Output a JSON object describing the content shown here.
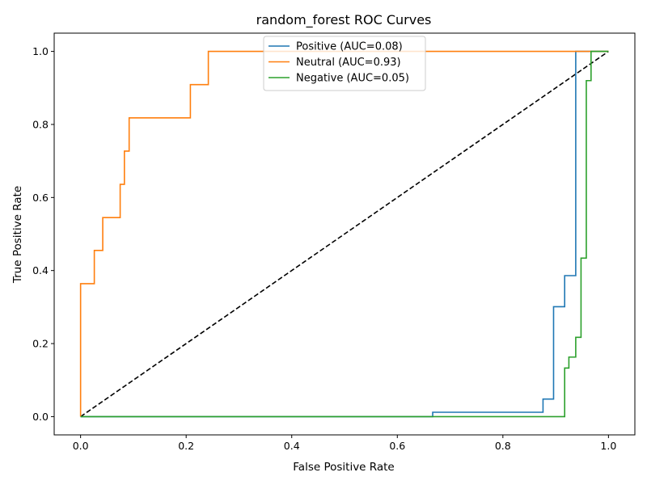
{
  "chart_data": {
    "type": "line",
    "title": "random_forest ROC Curves",
    "xlabel": "False Positive Rate",
    "ylabel": "True Positive Rate",
    "xlim": [
      -0.05,
      1.05
    ],
    "ylim": [
      -0.05,
      1.05
    ],
    "xticks": [
      0.0,
      0.2,
      0.4,
      0.6,
      0.8,
      1.0
    ],
    "yticks": [
      0.0,
      0.2,
      0.4,
      0.6,
      0.8,
      1.0
    ],
    "xtick_labels": [
      "0.0",
      "0.2",
      "0.4",
      "0.6",
      "0.8",
      "1.0"
    ],
    "ytick_labels": [
      "0.0",
      "0.2",
      "0.4",
      "0.6",
      "0.8",
      "1.0"
    ],
    "grid": false,
    "legend_position": "top-center",
    "series": [
      {
        "name": "Positive (AUC=0.08)",
        "color": "#1f77b4",
        "x": [
          0.0,
          0.667,
          0.667,
          0.876,
          0.876,
          0.896,
          0.896,
          0.917,
          0.917,
          0.938,
          0.938,
          1.0
        ],
        "y": [
          0.0,
          0.0,
          0.012,
          0.012,
          0.048,
          0.048,
          0.301,
          0.301,
          0.386,
          0.386,
          1.0,
          1.0
        ]
      },
      {
        "name": "Neutral (AUC=0.93)",
        "color": "#ff7f0e",
        "x": [
          0.0,
          0.0,
          0.026,
          0.026,
          0.042,
          0.042,
          0.075,
          0.075,
          0.083,
          0.083,
          0.092,
          0.092,
          0.208,
          0.208,
          0.242,
          0.242,
          1.0
        ],
        "y": [
          0.0,
          0.364,
          0.364,
          0.455,
          0.455,
          0.545,
          0.545,
          0.636,
          0.636,
          0.727,
          0.727,
          0.818,
          0.818,
          0.909,
          0.909,
          1.0,
          1.0
        ]
      },
      {
        "name": "Negative (AUC=0.05)",
        "color": "#2ca02c",
        "x": [
          0.0,
          0.917,
          0.917,
          0.925,
          0.925,
          0.938,
          0.938,
          0.948,
          0.948,
          0.958,
          0.958,
          0.967,
          0.967,
          1.0
        ],
        "y": [
          0.0,
          0.0,
          0.133,
          0.133,
          0.163,
          0.163,
          0.217,
          0.217,
          0.434,
          0.434,
          0.92,
          0.92,
          1.0,
          1.0
        ]
      }
    ],
    "reference_line": {
      "color": "#000000",
      "style": "dashed",
      "x": [
        0.0,
        1.0
      ],
      "y": [
        0.0,
        1.0
      ]
    }
  }
}
